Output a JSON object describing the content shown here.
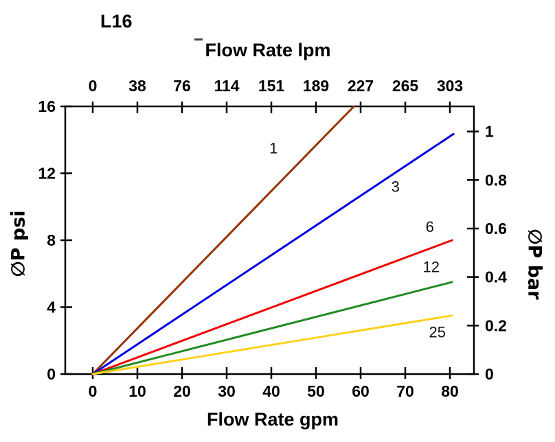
{
  "chart_data": {
    "type": "line",
    "title": "L16",
    "top_axis": {
      "label": "Flow Rate lpm",
      "tick_labels": [
        "0",
        "38",
        "76",
        "114",
        "151",
        "189",
        "227",
        "265",
        "303"
      ]
    },
    "bottom_axis": {
      "label": "Flow Rate gpm",
      "tick_labels": [
        "0",
        "10",
        "20",
        "30",
        "40",
        "50",
        "60",
        "70",
        "80"
      ],
      "range_gpm": [
        0,
        85
      ]
    },
    "left_axis": {
      "label": "∅P psi",
      "tick_labels": [
        "0",
        "4",
        "8",
        "12",
        "16"
      ],
      "range_psi": [
        0,
        16
      ]
    },
    "right_axis": {
      "label": "∅P bar",
      "tick_labels": [
        "0",
        "0.2",
        "0.4",
        "0.6",
        "0.8",
        "1"
      ],
      "psi_per_bar": 14.5
    },
    "grid": false,
    "series": [
      {
        "name": "1",
        "label": "1",
        "color": "#993300",
        "points_gpm_psi": [
          [
            0,
            0
          ],
          [
            58.5,
            16
          ]
        ],
        "label_at": [
          40.5,
          13.2
        ]
      },
      {
        "name": "3",
        "label": "3",
        "color": "#0000dd",
        "points_gpm_psi": [
          [
            0,
            0
          ],
          [
            80.8,
            14.35
          ]
        ],
        "label_at": [
          67.8,
          10.9
        ]
      },
      {
        "name": "6",
        "label": "6",
        "color": "#ee0000",
        "points_gpm_psi": [
          [
            0,
            0
          ],
          [
            80.5,
            8.0
          ]
        ],
        "label_at": [
          75.5,
          8.5
        ]
      },
      {
        "name": "12",
        "label": "12",
        "color": "#228b22",
        "points_gpm_psi": [
          [
            0,
            0
          ],
          [
            80.5,
            5.5
          ]
        ],
        "label_at": [
          75.8,
          6.1
        ]
      },
      {
        "name": "25",
        "label": "25",
        "color": "#ffd21e",
        "points_gpm_psi": [
          [
            0,
            0
          ],
          [
            80.5,
            3.5
          ]
        ],
        "label_at": [
          77.2,
          2.2
        ]
      }
    ]
  }
}
